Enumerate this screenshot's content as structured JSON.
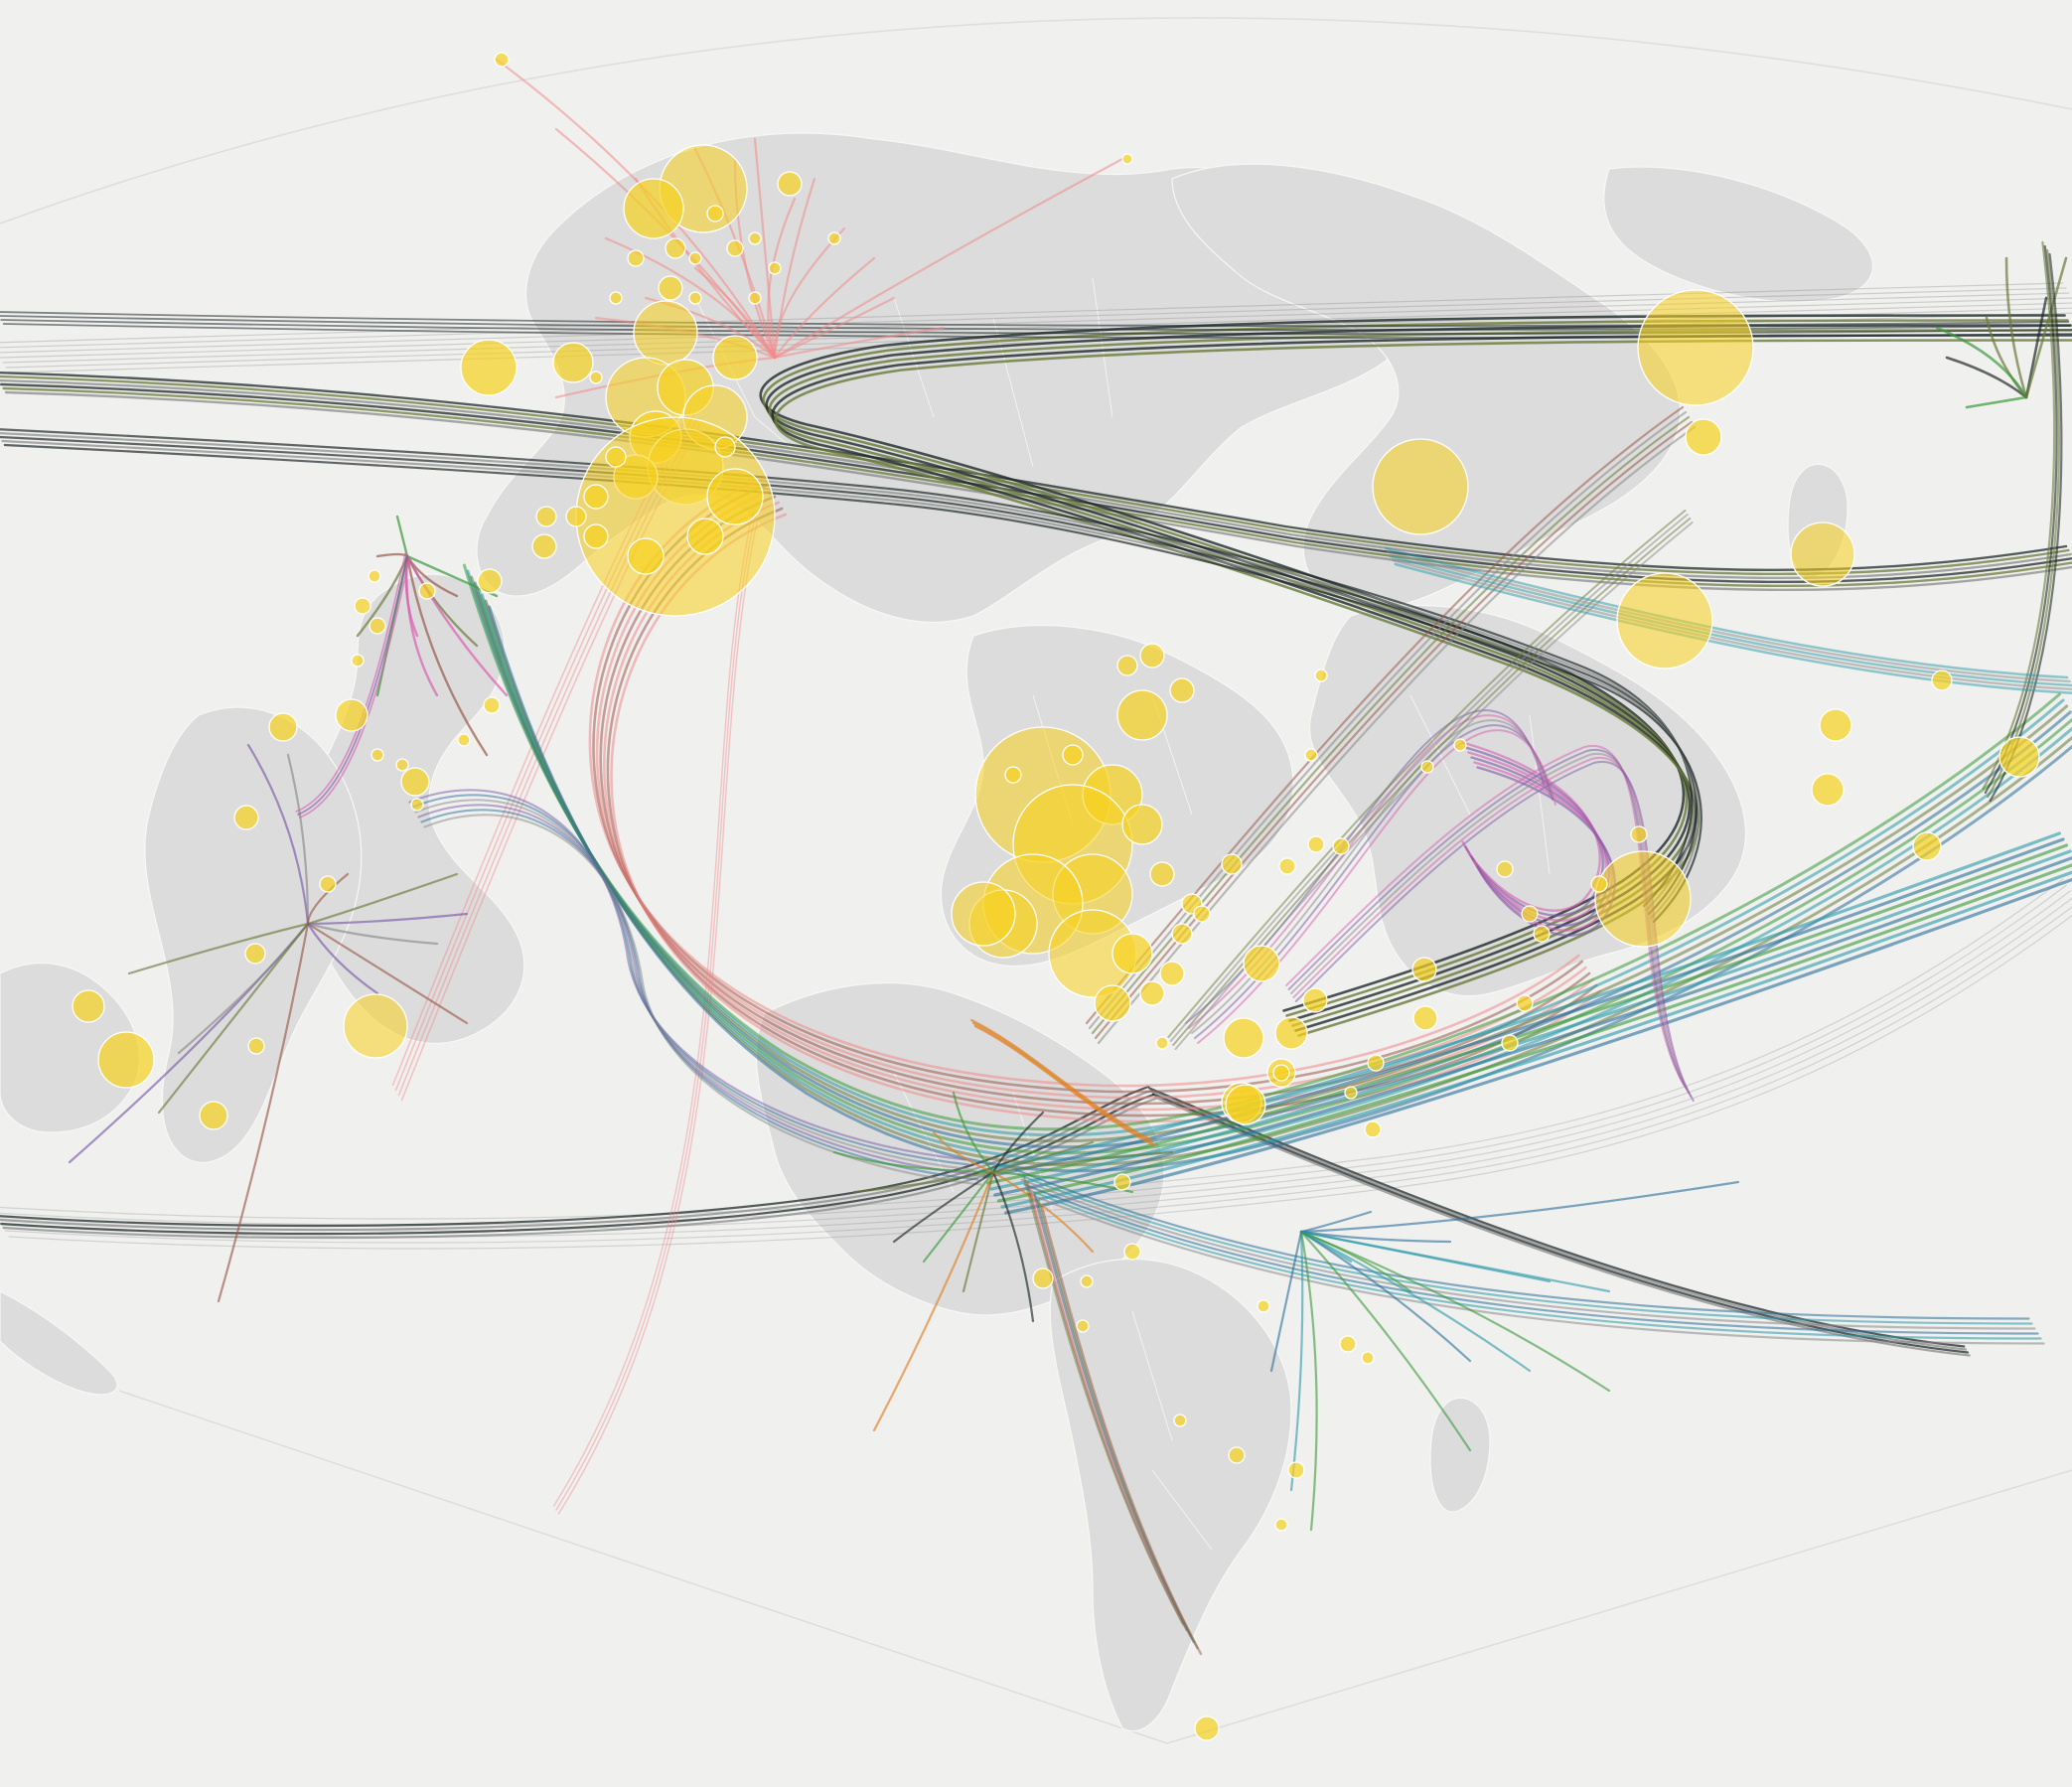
{
  "map": {
    "projection": "curved-world",
    "background_color": "#f0f0ef",
    "land_color": "#dcdcdc",
    "hub_color": "#f7d21e",
    "flow_palette": {
      "black": "#1f2a2a",
      "gray": "#8a8a8a",
      "salmon": "#f28a8a",
      "green": "#3a9a3a",
      "olive": "#6b7b3a",
      "teal": "#2a9aa8",
      "blue": "#2a6f9a",
      "purple": "#7a5aa8",
      "pink": "#d860b0",
      "brown": "#9a5a4a",
      "orange": "#e08020"
    }
  }
}
